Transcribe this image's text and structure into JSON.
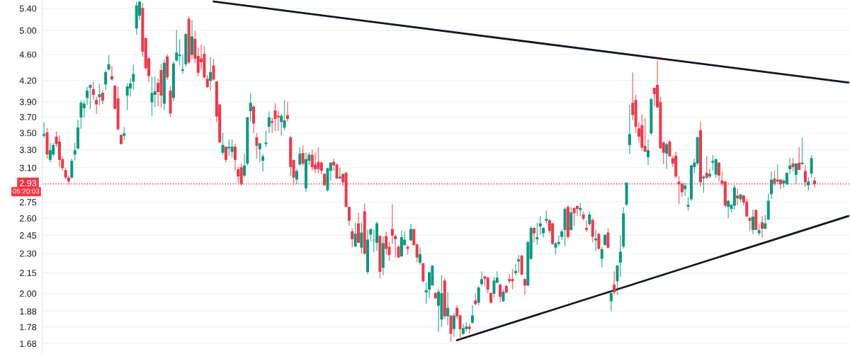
{
  "chart_data": {
    "type": "candlestick",
    "categories": [
      null,
      null,
      null,
      null,
      null,
      null,
      null,
      null,
      null,
      null,
      null,
      null,
      null,
      null,
      null,
      null,
      null,
      null,
      null,
      null,
      null,
      null,
      null,
      null,
      null,
      null,
      null,
      null,
      null,
      null,
      null,
      null,
      null,
      null,
      null,
      null,
      null,
      null,
      null,
      null,
      null,
      null,
      null,
      null,
      null,
      null,
      null,
      null,
      null,
      null,
      null,
      null,
      null,
      null,
      null,
      null,
      null,
      null,
      null,
      null,
      null,
      null,
      null,
      null,
      null,
      null,
      null,
      null,
      null,
      null,
      null,
      null,
      null,
      null,
      null,
      null,
      null,
      null,
      null,
      null,
      null,
      null,
      null,
      null,
      null,
      null,
      null,
      null,
      null,
      null,
      null,
      null,
      null,
      null,
      null,
      null,
      null,
      null,
      null,
      null,
      null,
      null,
      null,
      null,
      null,
      null,
      null,
      null,
      null,
      null,
      null,
      null,
      null,
      null,
      null,
      null,
      null,
      null,
      null,
      null,
      null,
      null,
      null,
      null,
      null,
      null,
      null,
      null,
      null,
      null,
      null,
      null,
      null,
      null,
      null,
      null,
      null,
      null,
      null,
      null,
      null,
      null,
      null,
      null,
      null,
      null,
      null,
      null,
      null,
      null,
      null,
      null,
      null,
      null,
      null,
      null,
      null,
      null,
      null,
      null,
      null,
      null,
      null,
      null,
      null,
      null,
      null,
      null,
      null,
      null,
      null,
      null,
      null,
      null,
      null,
      null,
      null,
      null,
      null,
      null,
      null,
      null,
      null,
      null,
      null,
      null,
      null,
      null,
      null,
      null,
      null,
      null,
      null,
      null,
      null,
      null,
      null,
      null,
      null,
      null,
      null,
      null,
      null,
      null,
      null,
      null,
      null,
      null,
      null,
      null,
      null,
      null,
      null,
      null,
      null,
      null,
      null,
      null,
      null,
      null,
      null,
      null,
      null,
      null,
      null,
      null,
      null,
      null,
      null,
      null,
      null,
      null,
      null,
      null,
      null,
      null,
      null,
      null,
      null,
      null,
      null,
      null,
      null,
      null,
      null,
      null,
      null,
      null,
      null,
      null,
      null,
      null,
      null,
      null,
      null,
      null,
      null,
      null,
      null,
      null,
      null,
      null
    ],
    "ohlc": [
      [
        3.47,
        3.63,
        3.44,
        3.48
      ],
      [
        3.5,
        3.56,
        3.2,
        3.25
      ],
      [
        3.19,
        3.38,
        3.16,
        3.29
      ],
      [
        3.25,
        3.38,
        3.22,
        3.35
      ],
      [
        3.45,
        3.52,
        3.33,
        3.37
      ],
      [
        3.39,
        3.47,
        3.11,
        3.19
      ],
      [
        3.19,
        3.23,
        3.07,
        3.1
      ],
      [
        3.07,
        3.1,
        2.98,
        3.0
      ],
      [
        2.99,
        3.02,
        2.92,
        2.96
      ],
      [
        3.0,
        3.2,
        2.98,
        3.17
      ],
      [
        3.25,
        3.38,
        3.18,
        3.29
      ],
      [
        3.32,
        3.66,
        3.3,
        3.56
      ],
      [
        3.7,
        3.92,
        3.55,
        3.88
      ],
      [
        3.82,
        3.92,
        3.69,
        3.87
      ],
      [
        3.96,
        4.11,
        3.86,
        4.05
      ],
      [
        4.1,
        4.15,
        3.8,
        4.13
      ],
      [
        4.07,
        4.18,
        3.93,
        4.0
      ],
      [
        3.92,
        3.97,
        3.74,
        3.87
      ],
      [
        3.97,
        4.15,
        3.85,
        4.0
      ],
      [
        4.02,
        4.06,
        3.87,
        3.92
      ],
      [
        4.15,
        4.36,
        4.06,
        4.32
      ],
      [
        4.37,
        4.59,
        4.34,
        4.44
      ],
      [
        4.26,
        4.42,
        4.2,
        4.22
      ],
      [
        4.12,
        4.13,
        3.8,
        3.81
      ],
      [
        3.94,
        4.11,
        3.53,
        3.55
      ],
      [
        3.47,
        3.48,
        3.36,
        3.37
      ],
      [
        3.47,
        3.57,
        3.41,
        3.49
      ],
      [
        3.99,
        4.16,
        3.79,
        4.11
      ],
      [
        4.09,
        4.23,
        3.97,
        4.15
      ],
      [
        4.19,
        4.44,
        4.07,
        4.29
      ],
      [
        5.04,
        5.53,
        4.93,
        5.45
      ],
      [
        5.27,
        5.53,
        5.19,
        5.52
      ],
      [
        5.4,
        5.5,
        4.56,
        4.65
      ],
      [
        4.86,
        4.88,
        4.36,
        4.39
      ],
      [
        4.53,
        4.56,
        4.18,
        4.27
      ],
      [
        3.9,
        4.26,
        3.71,
        4.02
      ],
      [
        4.0,
        4.26,
        3.83,
        4.04
      ],
      [
        4.16,
        4.23,
        3.84,
        4.04
      ],
      [
        4.35,
        4.45,
        3.82,
        3.99
      ],
      [
        3.88,
        4.52,
        3.79,
        4.46
      ],
      [
        4.56,
        4.6,
        4.21,
        4.25
      ],
      [
        4.05,
        4.12,
        3.7,
        3.75
      ],
      [
        3.96,
        4.49,
        3.91,
        4.45
      ],
      [
        4.51,
        5.01,
        4.48,
        4.62
      ],
      [
        4.58,
        4.85,
        4.43,
        4.59
      ],
      [
        4.35,
        4.6,
        4.3,
        4.36
      ],
      [
        4.45,
        4.96,
        4.41,
        4.93
      ],
      [
        5.2,
        5.25,
        4.45,
        4.48
      ],
      [
        4.6,
        5.18,
        4.53,
        4.89
      ],
      [
        4.85,
        4.99,
        4.46,
        4.54
      ],
      [
        4.57,
        4.71,
        4.26,
        4.32
      ],
      [
        4.53,
        4.76,
        4.36,
        4.48
      ],
      [
        4.6,
        4.73,
        4.23,
        4.25
      ],
      [
        4.22,
        4.28,
        4.09,
        4.11
      ],
      [
        4.2,
        4.56,
        4.06,
        4.32
      ],
      [
        4.42,
        4.53,
        4.2,
        4.22
      ],
      [
        4.18,
        4.19,
        3.63,
        3.71
      ],
      [
        3.86,
        3.87,
        3.38,
        3.39
      ],
      [
        3.27,
        3.5,
        3.24,
        3.35
      ],
      [
        3.33,
        3.34,
        3.16,
        3.19
      ],
      [
        3.32,
        3.42,
        3.23,
        3.33
      ],
      [
        3.28,
        3.42,
        3.21,
        3.33
      ],
      [
        3.33,
        3.37,
        3.07,
        3.19
      ],
      [
        3.08,
        3.11,
        2.94,
        3.01
      ],
      [
        3.1,
        3.15,
        2.91,
        2.93
      ],
      [
        3.02,
        3.25,
        3.0,
        3.12
      ],
      [
        3.15,
        3.7,
        3.12,
        3.69
      ],
      [
        3.78,
        4.02,
        3.64,
        3.88
      ],
      [
        3.83,
        3.86,
        3.5,
        3.62
      ],
      [
        3.44,
        3.5,
        3.2,
        3.35
      ],
      [
        3.31,
        3.38,
        3.16,
        3.37
      ],
      [
        3.18,
        3.25,
        3.06,
        3.22
      ],
      [
        3.37,
        3.53,
        3.33,
        3.38
      ],
      [
        3.58,
        3.77,
        3.5,
        3.69
      ],
      [
        3.64,
        3.69,
        3.5,
        3.63
      ],
      [
        3.78,
        3.88,
        3.52,
        3.68
      ],
      [
        3.71,
        3.78,
        3.52,
        3.7
      ],
      [
        3.64,
        3.74,
        3.47,
        3.71
      ],
      [
        3.57,
        3.92,
        3.53,
        3.65
      ],
      [
        3.72,
        3.9,
        3.64,
        3.68
      ],
      [
        3.44,
        3.46,
        3.01,
        3.11
      ],
      [
        3.18,
        3.19,
        2.92,
        3.0
      ],
      [
        2.98,
        3.09,
        2.93,
        3.06
      ],
      [
        3.14,
        3.33,
        3.12,
        3.25
      ],
      [
        3.26,
        3.35,
        3.12,
        3.15
      ],
      [
        2.89,
        3.27,
        2.85,
        3.19
      ],
      [
        3.18,
        3.27,
        3.13,
        3.24
      ],
      [
        3.24,
        3.3,
        3.07,
        3.11
      ],
      [
        3.13,
        3.27,
        3.04,
        3.09
      ],
      [
        3.16,
        3.33,
        3.04,
        3.09
      ],
      [
        3.15,
        3.17,
        3.03,
        3.07
      ],
      [
        3.03,
        3.04,
        2.91,
        2.92
      ],
      [
        2.87,
        3.1,
        2.85,
        3.09
      ],
      [
        3.07,
        3.16,
        2.96,
        3.15
      ],
      [
        3.16,
        3.2,
        3.07,
        3.13
      ],
      [
        3.13,
        3.15,
        2.98,
        2.99
      ],
      [
        2.99,
        3.1,
        2.98,
        3.0
      ],
      [
        3.03,
        3.03,
        2.91,
        2.95
      ],
      [
        3.04,
        3.06,
        2.7,
        2.71
      ],
      [
        2.7,
        2.71,
        2.53,
        2.58
      ],
      [
        2.48,
        2.51,
        2.35,
        2.42
      ],
      [
        2.36,
        2.56,
        2.35,
        2.46
      ],
      [
        2.55,
        2.65,
        2.39,
        2.39
      ],
      [
        2.35,
        2.56,
        2.3,
        2.47
      ],
      [
        2.66,
        2.74,
        2.29,
        2.3
      ],
      [
        2.16,
        2.5,
        2.14,
        2.41
      ],
      [
        2.46,
        2.51,
        2.4,
        2.5
      ],
      [
        2.41,
        2.5,
        2.31,
        2.41
      ],
      [
        2.39,
        2.57,
        2.32,
        2.55
      ],
      [
        2.44,
        2.45,
        2.11,
        2.16
      ],
      [
        2.19,
        2.44,
        2.13,
        2.38
      ],
      [
        2.44,
        2.48,
        2.29,
        2.34
      ],
      [
        2.35,
        2.39,
        2.24,
        2.29
      ],
      [
        2.5,
        2.73,
        2.38,
        2.45
      ],
      [
        2.44,
        2.46,
        2.27,
        2.42
      ],
      [
        2.35,
        2.37,
        2.27,
        2.27
      ],
      [
        2.28,
        2.49,
        2.27,
        2.43
      ],
      [
        2.37,
        2.48,
        2.36,
        2.41
      ],
      [
        2.35,
        2.37,
        2.29,
        2.34
      ],
      [
        2.41,
        2.55,
        2.4,
        2.5
      ],
      [
        2.5,
        2.5,
        2.37,
        2.37
      ],
      [
        2.37,
        2.38,
        2.23,
        2.27
      ],
      [
        2.23,
        2.35,
        2.21,
        2.29
      ],
      [
        2.22,
        2.22,
        2.08,
        2.09
      ],
      [
        2.01,
        2.08,
        1.93,
        2.02
      ],
      [
        2.03,
        2.16,
        1.97,
        2.15
      ],
      [
        2.06,
        2.21,
        2.06,
        2.2
      ],
      [
        2.0,
        2.01,
        1.96,
        1.97
      ],
      [
        1.92,
        2.03,
        1.75,
        2.01
      ],
      [
        1.83,
        2.13,
        1.78,
        2.0
      ],
      [
        2.09,
        2.11,
        1.83,
        1.85
      ],
      [
        1.85,
        2.01,
        1.79,
        1.9
      ],
      [
        1.85,
        1.85,
        1.69,
        1.74
      ],
      [
        1.77,
        1.87,
        1.72,
        1.85
      ],
      [
        1.9,
        1.92,
        1.83,
        1.85
      ],
      [
        1.85,
        1.86,
        1.7,
        1.77
      ],
      [
        1.74,
        1.8,
        1.73,
        1.77
      ],
      [
        1.77,
        1.81,
        1.75,
        1.78
      ],
      [
        1.78,
        1.8,
        1.74,
        1.77
      ],
      [
        1.81,
        1.92,
        1.8,
        1.85
      ],
      [
        1.95,
        2.0,
        1.92,
        1.93
      ],
      [
        1.94,
        2.05,
        1.92,
        2.04
      ],
      [
        2.07,
        2.16,
        2.05,
        2.1
      ],
      [
        2.12,
        2.13,
        2.05,
        2.11
      ],
      [
        2.11,
        2.12,
        2.0,
        2.03
      ],
      [
        2.0,
        2.01,
        1.93,
        1.94
      ],
      [
        2.0,
        2.12,
        1.97,
        2.09
      ],
      [
        2.08,
        2.16,
        2.07,
        2.11
      ],
      [
        2.06,
        2.07,
        1.94,
        1.98
      ],
      [
        1.95,
        2.03,
        1.94,
        2.01
      ],
      [
        2.05,
        2.06,
        2.0,
        2.01
      ],
      [
        2.1,
        2.14,
        2.07,
        2.09
      ],
      [
        2.1,
        2.18,
        2.03,
        2.09
      ],
      [
        2.15,
        2.22,
        2.13,
        2.16
      ],
      [
        2.24,
        2.29,
        2.15,
        2.25
      ],
      [
        2.28,
        2.29,
        2.13,
        2.14
      ],
      [
        2.1,
        2.11,
        1.99,
        2.06
      ],
      [
        2.06,
        2.4,
        2.05,
        2.39
      ],
      [
        2.26,
        2.53,
        2.25,
        2.51
      ],
      [
        2.51,
        2.52,
        2.39,
        2.47
      ],
      [
        2.42,
        2.56,
        2.37,
        2.43
      ],
      [
        2.53,
        2.62,
        2.46,
        2.55
      ],
      [
        2.47,
        2.52,
        2.43,
        2.51
      ],
      [
        2.58,
        2.67,
        2.55,
        2.59
      ],
      [
        2.58,
        2.59,
        2.47,
        2.49
      ],
      [
        2.55,
        2.56,
        2.37,
        2.38
      ],
      [
        2.35,
        2.39,
        2.29,
        2.38
      ],
      [
        2.38,
        2.45,
        2.36,
        2.39
      ],
      [
        2.44,
        2.5,
        2.41,
        2.48
      ],
      [
        2.5,
        2.7,
        2.36,
        2.68
      ],
      [
        2.7,
        2.72,
        2.42,
        2.44
      ],
      [
        2.5,
        2.7,
        2.49,
        2.65
      ],
      [
        2.69,
        2.7,
        2.53,
        2.65
      ],
      [
        2.71,
        2.71,
        2.62,
        2.69
      ],
      [
        2.68,
        2.74,
        2.62,
        2.69
      ],
      [
        2.63,
        2.66,
        2.58,
        2.6
      ],
      [
        2.51,
        2.58,
        2.48,
        2.5
      ],
      [
        2.55,
        2.66,
        2.53,
        2.63
      ],
      [
        2.58,
        2.6,
        2.39,
        2.44
      ],
      [
        2.41,
        2.5,
        2.32,
        2.42
      ],
      [
        2.46,
        2.46,
        2.33,
        2.34
      ],
      [
        2.26,
        2.35,
        2.19,
        2.33
      ],
      [
        2.37,
        2.46,
        2.37,
        2.45
      ],
      [
        2.47,
        2.51,
        2.34,
        2.35
      ],
      [
        1.95,
        2.02,
        1.88,
        2.0
      ],
      [
        2.06,
        2.16,
        1.99,
        2.01
      ],
      [
        2.09,
        2.21,
        1.99,
        2.2
      ],
      [
        2.23,
        2.45,
        2.12,
        2.31
      ],
      [
        2.36,
        2.7,
        2.34,
        2.64
      ],
      [
        2.73,
        2.94,
        2.71,
        2.94
      ],
      [
        3.36,
        3.86,
        3.25,
        3.48
      ],
      [
        3.88,
        4.32,
        3.66,
        3.73
      ],
      [
        3.92,
        4.0,
        3.5,
        3.58
      ],
      [
        3.55,
        3.63,
        3.39,
        3.46
      ],
      [
        3.59,
        3.74,
        3.29,
        3.33
      ],
      [
        3.34,
        3.68,
        3.28,
        3.28
      ],
      [
        3.22,
        3.42,
        3.13,
        3.29
      ],
      [
        3.5,
        3.96,
        3.48,
        3.93
      ],
      [
        4.09,
        4.1,
        3.84,
        4.01
      ],
      [
        4.13,
        4.5,
        3.83,
        3.83
      ],
      [
        3.89,
        3.97,
        3.31,
        3.32
      ],
      [
        3.38,
        3.4,
        3.14,
        3.27
      ],
      [
        3.26,
        3.38,
        3.09,
        3.36
      ],
      [
        3.39,
        3.41,
        3.22,
        3.23
      ],
      [
        3.2,
        3.23,
        3.11,
        3.15
      ],
      [
        3.23,
        3.28,
        2.99,
        3.01
      ],
      [
        2.95,
        3.01,
        2.73,
        2.93
      ],
      [
        2.93,
        2.94,
        2.8,
        2.85
      ],
      [
        2.88,
        2.94,
        2.81,
        2.91
      ],
      [
        2.71,
        2.8,
        2.67,
        2.72
      ],
      [
        2.78,
        3.13,
        2.76,
        3.12
      ],
      [
        3.11,
        3.2,
        3.04,
        3.15
      ],
      [
        3.15,
        3.46,
        3.12,
        3.44
      ],
      [
        3.53,
        3.64,
        2.9,
        2.95
      ],
      [
        2.99,
        3.02,
        2.84,
        3.0
      ],
      [
        3.04,
        3.23,
        2.98,
        3.0
      ],
      [
        3.01,
        3.09,
        2.99,
        3.03
      ],
      [
        3.16,
        3.24,
        3.07,
        3.17
      ],
      [
        3.03,
        3.2,
        2.99,
        3.19
      ],
      [
        3.15,
        3.16,
        2.96,
        3.02
      ],
      [
        2.96,
        3.06,
        2.91,
        2.94
      ],
      [
        2.95,
        2.96,
        2.7,
        2.72
      ],
      [
        2.71,
        2.77,
        2.6,
        2.76
      ],
      [
        2.69,
        2.73,
        2.65,
        2.72
      ],
      [
        2.72,
        2.92,
        2.68,
        2.89
      ],
      [
        2.81,
        2.88,
        2.72,
        2.79
      ],
      [
        2.78,
        2.83,
        2.75,
        2.82
      ],
      [
        2.81,
        2.82,
        2.72,
        2.75
      ],
      [
        2.75,
        2.78,
        2.61,
        2.62
      ],
      [
        2.6,
        2.61,
        2.49,
        2.58
      ],
      [
        2.5,
        2.68,
        2.46,
        2.61
      ],
      [
        2.67,
        2.68,
        2.5,
        2.5
      ],
      [
        2.47,
        2.55,
        2.45,
        2.49
      ],
      [
        2.56,
        2.62,
        2.43,
        2.51
      ],
      [
        2.51,
        2.63,
        2.5,
        2.55
      ],
      [
        2.59,
        2.83,
        2.59,
        2.76
      ],
      [
        2.83,
        3.06,
        2.78,
        2.97
      ],
      [
        2.98,
        3.07,
        2.91,
        2.94
      ],
      [
        2.96,
        3.13,
        2.93,
        2.97
      ],
      [
        2.97,
        2.98,
        2.88,
        2.93
      ],
      [
        2.94,
        2.98,
        2.89,
        2.96
      ],
      [
        2.93,
        3.05,
        2.92,
        3.04
      ],
      [
        3.09,
        3.21,
        3.03,
        3.12
      ],
      [
        3.14,
        3.21,
        3.06,
        3.11
      ],
      [
        3.03,
        3.15,
        2.93,
        3.14
      ],
      [
        3.15,
        3.33,
        3.08,
        3.08
      ],
      [
        3.14,
        3.44,
        3.14,
        3.15
      ],
      [
        3.06,
        3.13,
        2.9,
        2.95
      ],
      [
        2.92,
        3.0,
        2.86,
        2.95
      ],
      [
        3.04,
        3.24,
        2.99,
        3.2
      ],
      [
        2.96,
        3.0,
        2.89,
        2.93
      ],
      null,
      null,
      null,
      null,
      null,
      null,
      null,
      null,
      null,
      null,
      null
    ],
    "colors": [
      "#089981",
      "#f23645",
      "#089981",
      "#089981",
      "#f23645",
      "#f23645",
      "#f23645",
      "#f23645",
      "#f23645",
      "#089981",
      "#089981",
      "#089981",
      "#089981",
      "#089981",
      "#089981",
      "#089981",
      "#f23645",
      "#f23645",
      "#089981",
      "#f23645",
      "#089981",
      "#089981",
      "#f23645",
      "#f23645",
      "#f23645",
      "#f23645",
      "#089981",
      "#089981",
      "#089981",
      "#089981",
      "#089981",
      "#089981",
      "#f23645",
      "#f23645",
      "#f23645",
      "#089981",
      "#089981",
      "#f23645",
      "#f23645",
      "#089981",
      "#f23645",
      "#f23645",
      "#089981",
      "#089981",
      "#089981",
      "#089981",
      "#089981",
      "#f23645",
      "#089981",
      "#f23645",
      "#f23645",
      "#f23645",
      "#f23645",
      "#f23645",
      "#089981",
      "#f23645",
      "#f23645",
      "#f23645",
      "#089981",
      "#f23645",
      "#089981",
      "#089981",
      "#f23645",
      "#f23645",
      "#f23645",
      "#089981",
      "#089981",
      "#089981",
      "#f23645",
      "#f23645",
      "#089981",
      "#089981",
      "#089981",
      "#089981",
      "#f23645",
      "#f23645",
      "#f23645",
      "#089981",
      "#089981",
      "#f23645",
      "#f23645",
      "#f23645",
      "#089981",
      "#089981",
      "#f23645",
      "#089981",
      "#089981",
      "#f23645",
      "#f23645",
      "#f23645",
      "#f23645",
      "#f23645",
      "#089981",
      "#089981",
      "#f23645",
      "#f23645",
      "#089981",
      "#f23645",
      "#f23645",
      "#f23645",
      "#f23645",
      "#089981",
      "#f23645",
      "#089981",
      "#f23645",
      "#089981",
      "#089981",
      "#089981",
      "#089981",
      "#f23645",
      "#089981",
      "#f23645",
      "#f23645",
      "#f23645",
      "#f23645",
      "#f23645",
      "#089981",
      "#089981",
      "#f23645",
      "#089981",
      "#f23645",
      "#f23645",
      "#089981",
      "#f23645",
      "#089981",
      "#089981",
      "#089981",
      "#f23645",
      "#089981",
      "#089981",
      "#f23645",
      "#089981",
      "#f23645",
      "#089981",
      "#f23645",
      "#f23645",
      "#089981",
      "#089981",
      "#f23645",
      "#089981",
      "#f23645",
      "#089981",
      "#089981",
      "#f23645",
      "#f23645",
      "#f23645",
      "#089981",
      "#089981",
      "#f23645",
      "#089981",
      "#f23645",
      "#f23645",
      "#f23645",
      "#089981",
      "#089981",
      "#f23645",
      "#f23645",
      "#089981",
      "#089981",
      "#f23645",
      "#089981",
      "#089981",
      "#089981",
      "#089981",
      "#f23645",
      "#f23645",
      "#089981",
      "#089981",
      "#089981",
      "#089981",
      "#f23645",
      "#089981",
      "#f23645",
      "#f23645",
      "#089981",
      "#f23645",
      "#f23645",
      "#089981",
      "#f23645",
      "#089981",
      "#f23645",
      "#089981",
      "#089981",
      "#f23645",
      "#089981",
      "#f23645",
      "#089981",
      "#089981",
      "#089981",
      "#089981",
      "#089981",
      "#f23645",
      "#f23645",
      "#f23645",
      "#f23645",
      "#f23645",
      "#089981",
      "#089981",
      "#f23645",
      "#f23645",
      "#f23645",
      "#f23645",
      "#089981",
      "#f23645",
      "#f23645",
      "#f23645",
      "#f23645",
      "#f23645",
      "#089981",
      "#089981",
      "#089981",
      "#089981",
      "#089981",
      "#f23645",
      "#089981",
      "#f23645",
      "#089981",
      "#089981",
      "#089981",
      "#f23645",
      "#f23645",
      "#f23645",
      "#089981",
      "#089981",
      "#089981",
      "#f23645",
      "#089981",
      "#f23645",
      "#f23645",
      "#f23645",
      "#089981",
      "#f23645",
      "#089981",
      "#f23645",
      "#089981",
      "#089981",
      "#089981",
      "#f23645",
      "#089981",
      "#f23645",
      "#089981",
      "#089981",
      "#089981",
      "#f23645",
      "#089981",
      "#f23645",
      "#089981",
      "#f23645",
      "#089981",
      "#089981",
      "#f23645",
      null,
      null,
      null,
      null,
      null,
      null,
      null,
      null,
      null,
      null,
      null
    ],
    "series": [
      {
        "type": "line",
        "color": "#131722",
        "values": [
          null,
          null,
          null,
          null,
          null,
          null,
          null,
          null,
          null,
          null,
          null,
          null,
          null,
          null,
          null,
          null,
          null,
          null,
          null,
          null,
          null,
          null,
          null,
          null,
          null,
          null,
          null,
          null,
          null,
          null,
          null,
          null,
          null,
          null,
          null,
          null,
          null,
          null,
          null,
          null,
          null,
          null,
          null,
          null,
          null,
          null,
          null,
          null,
          null,
          null,
          null,
          null,
          null,
          null,
          null,
          5.53,
          null,
          null,
          null,
          null,
          null,
          null,
          null,
          null,
          null,
          null,
          null,
          null,
          null,
          null,
          null,
          null,
          null,
          null,
          null,
          null,
          null,
          null,
          null,
          null,
          null,
          null,
          null,
          null,
          null,
          null,
          null,
          null,
          null,
          null,
          null,
          null,
          null,
          null,
          null,
          null,
          null,
          null,
          null,
          null,
          null,
          null,
          null,
          null,
          null,
          null,
          null,
          null,
          null,
          null,
          null,
          null,
          null,
          null,
          null,
          null,
          null,
          null,
          null,
          null,
          null,
          null,
          null,
          null,
          null,
          null,
          null,
          null,
          null,
          null,
          null,
          null,
          null,
          null,
          null,
          null,
          null,
          null,
          null,
          null,
          null,
          null,
          null,
          null,
          null,
          null,
          null,
          null,
          null,
          null,
          null,
          null,
          null,
          null,
          null,
          null,
          null,
          null,
          null,
          null,
          null,
          null,
          null,
          null,
          null,
          null,
          null,
          null,
          null,
          null,
          null,
          null,
          null,
          null,
          null,
          null,
          null,
          null,
          null,
          null,
          null,
          null,
          null,
          null,
          null,
          null,
          null,
          null,
          null,
          null,
          null,
          null,
          null,
          null,
          null,
          null,
          null,
          null,
          null,
          null,
          null,
          null,
          null,
          null,
          null,
          null,
          null,
          null,
          null,
          null,
          null,
          null,
          null,
          null,
          null,
          null,
          null,
          null,
          null,
          null,
          null,
          null,
          null,
          null,
          null,
          null,
          null,
          null,
          null,
          null,
          null,
          null,
          null,
          null,
          null,
          null,
          null,
          null,
          null,
          null,
          null,
          null,
          null,
          null,
          null,
          null,
          null,
          null,
          null,
          null,
          null,
          null,
          null,
          null,
          null,
          null,
          null,
          null,
          null,
          null,
          null,
          4.17
        ]
      },
      {
        "type": "line",
        "color": "#131722",
        "values": [
          null,
          null,
          null,
          null,
          null,
          null,
          null,
          null,
          null,
          null,
          null,
          null,
          null,
          null,
          null,
          null,
          null,
          null,
          null,
          null,
          null,
          null,
          null,
          null,
          null,
          null,
          null,
          null,
          null,
          null,
          null,
          null,
          null,
          null,
          null,
          null,
          null,
          null,
          null,
          null,
          null,
          null,
          null,
          null,
          null,
          null,
          null,
          null,
          null,
          null,
          null,
          null,
          null,
          null,
          null,
          null,
          null,
          null,
          null,
          null,
          null,
          null,
          null,
          null,
          null,
          null,
          null,
          null,
          null,
          null,
          null,
          null,
          null,
          null,
          null,
          null,
          null,
          null,
          null,
          null,
          null,
          null,
          null,
          null,
          null,
          null,
          null,
          null,
          null,
          null,
          null,
          null,
          null,
          null,
          null,
          null,
          null,
          null,
          null,
          null,
          null,
          null,
          null,
          null,
          null,
          null,
          null,
          null,
          null,
          null,
          null,
          null,
          null,
          null,
          null,
          null,
          null,
          null,
          null,
          null,
          null,
          null,
          null,
          null,
          null,
          null,
          null,
          null,
          null,
          null,
          null,
          null,
          null,
          null,
          1.7,
          null,
          null,
          null,
          null,
          null,
          null,
          null,
          null,
          null,
          null,
          null,
          null,
          null,
          null,
          null,
          null,
          null,
          null,
          null,
          null,
          null,
          null,
          null,
          null,
          null,
          null,
          null,
          null,
          null,
          null,
          null,
          null,
          null,
          null,
          null,
          null,
          null,
          null,
          null,
          null,
          null,
          null,
          null,
          null,
          null,
          null,
          null,
          null,
          null,
          null,
          null,
          null,
          null,
          null,
          null,
          null,
          null,
          null,
          null,
          null,
          null,
          null,
          null,
          null,
          null,
          null,
          null,
          null,
          null,
          null,
          null,
          null,
          null,
          null,
          null,
          null,
          null,
          null,
          null,
          null,
          null,
          null,
          null,
          null,
          null,
          null,
          null,
          null,
          null,
          null,
          null,
          null,
          null,
          null,
          null,
          null,
          null,
          null,
          null,
          null,
          null,
          null,
          null,
          null,
          null,
          null,
          null,
          null,
          null,
          null,
          null,
          null,
          null,
          null,
          null,
          null,
          null,
          null,
          null,
          null,
          null,
          null,
          null,
          null,
          null,
          null,
          2.62
        ]
      }
    ],
    "log": "y",
    "ylim": [
      1.62,
      5.56
    ],
    "yticks": [
      {
        "value": 1.68,
        "label": "1.68"
      },
      {
        "value": 1.78,
        "label": "1.78"
      },
      {
        "value": 1.88,
        "label": "1.88"
      },
      {
        "value": 2.0,
        "label": "2.00"
      },
      {
        "value": 2.15,
        "label": "2.15"
      },
      {
        "value": 2.3,
        "label": "2.30"
      },
      {
        "value": 2.45,
        "label": "2.45"
      },
      {
        "value": 2.6,
        "label": "2.60"
      },
      {
        "value": 2.75,
        "label": "2.75"
      },
      {
        "value": 3.1,
        "label": "3.10"
      },
      {
        "value": 3.3,
        "label": "3.30"
      },
      {
        "value": 3.5,
        "label": "3.50"
      },
      {
        "value": 3.7,
        "label": "3.70"
      },
      {
        "value": 3.9,
        "label": "3.90"
      },
      {
        "value": 4.2,
        "label": "4.20"
      },
      {
        "value": 4.6,
        "label": "4.60"
      },
      {
        "value": 5.0,
        "label": "5.00"
      },
      {
        "value": 5.4,
        "label": "5.40"
      }
    ],
    "ref_lines": [
      {
        "axis": "y",
        "value": 2.93,
        "label": "2.93",
        "color": "#f23645",
        "line_style": "dotted"
      }
    ],
    "annotations": [
      "05:20:03"
    ],
    "grid": "y",
    "tick_labels": "y"
  }
}
